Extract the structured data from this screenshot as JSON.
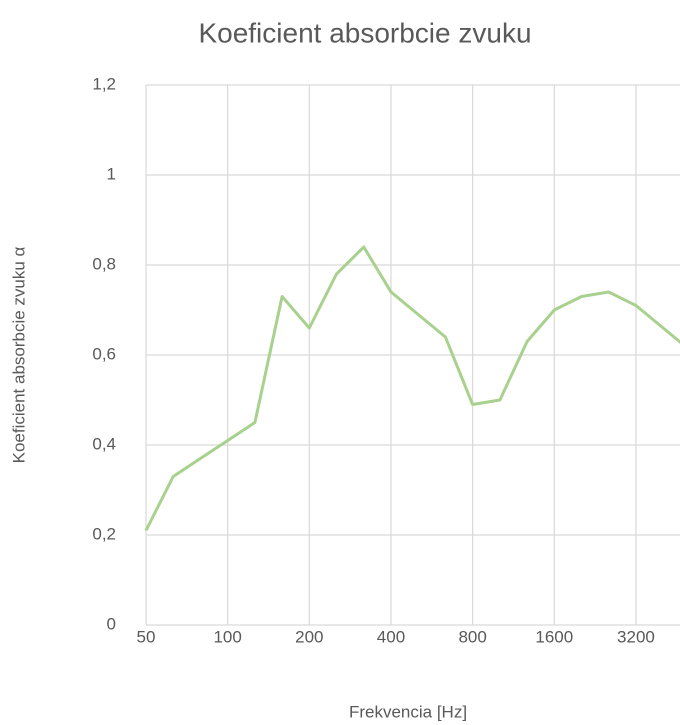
{
  "chart_data": {
    "type": "line",
    "title": "Koeficient absorbcie zvuku",
    "x_label": "Frekvencia [Hz]",
    "y_label": "Koeficient absorbcie zvuku α",
    "categories": [
      "50",
      null,
      null,
      "100",
      null,
      null,
      "200",
      null,
      null,
      "400",
      null,
      null,
      "800",
      null,
      null,
      "1600",
      null,
      null,
      "3200",
      null,
      null
    ],
    "series": [
      {
        "name": "Koeficient absorbcie zvuku",
        "color": "#a9d18e",
        "values": [
          0.21,
          0.33,
          0.37,
          0.41,
          0.45,
          0.73,
          0.66,
          0.78,
          0.84,
          0.74,
          0.69,
          0.64,
          0.49,
          0.5,
          0.63,
          0.7,
          0.73,
          0.74,
          0.71,
          0.66,
          0.61
        ]
      }
    ],
    "ylim": [
      0,
      1.2
    ],
    "yticks": [
      0,
      {
        "value": 0.2,
        "label": "0,2"
      },
      {
        "value": 0.4,
        "label": "0,4"
      },
      {
        "value": 0.6,
        "label": "0,6"
      },
      {
        "value": 0.8,
        "label": "0,8"
      },
      1,
      {
        "value": 1.2,
        "label": "1,2"
      }
    ],
    "grid": true
  }
}
